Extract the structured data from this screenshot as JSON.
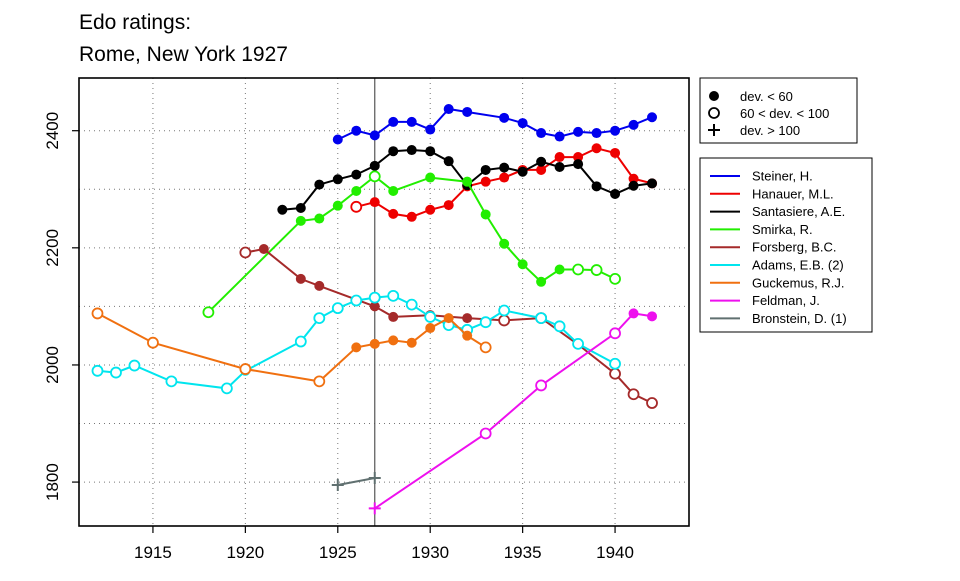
{
  "chart_data": {
    "type": "line",
    "title_line1": "Edo ratings:",
    "title_line2": "Rome, New York 1927",
    "xlim": [
      1911,
      1944
    ],
    "ylim": [
      1725,
      2490
    ],
    "x_ticks": [
      1915,
      1920,
      1925,
      1930,
      1935,
      1940
    ],
    "y_ticks": [
      1800,
      2000,
      2200,
      2400
    ],
    "grid": true,
    "vertical_marker_x": 1927,
    "marker_legend": [
      {
        "symbol": "filled",
        "label": "dev. < 60"
      },
      {
        "symbol": "open",
        "label": "60 < dev. < 100"
      },
      {
        "symbol": "plus",
        "label": "dev. > 100"
      }
    ],
    "series": [
      {
        "name": "Steiner, H.",
        "color": "#0000ee",
        "points": [
          [
            1925,
            2385,
            "f"
          ],
          [
            1926,
            2400,
            "f"
          ],
          [
            1927,
            2392,
            "f"
          ],
          [
            1928,
            2415,
            "f"
          ],
          [
            1929,
            2415,
            "f"
          ],
          [
            1930,
            2402,
            "f"
          ],
          [
            1931,
            2437,
            "f"
          ],
          [
            1932,
            2432,
            "f"
          ],
          [
            1934,
            2422,
            "f"
          ],
          [
            1935,
            2413,
            "f"
          ],
          [
            1936,
            2396,
            "f"
          ],
          [
            1937,
            2390,
            "f"
          ],
          [
            1938,
            2398,
            "f"
          ],
          [
            1939,
            2396,
            "f"
          ],
          [
            1940,
            2400,
            "f"
          ],
          [
            1941,
            2410,
            "f"
          ],
          [
            1942,
            2423,
            "f"
          ]
        ]
      },
      {
        "name": "Hanauer, M.L.",
        "color": "#ee0000",
        "points": [
          [
            1926,
            2270,
            "o"
          ],
          [
            1927,
            2278,
            "f"
          ],
          [
            1928,
            2258,
            "f"
          ],
          [
            1929,
            2253,
            "f"
          ],
          [
            1930,
            2265,
            "f"
          ],
          [
            1931,
            2273,
            "f"
          ],
          [
            1932,
            2305,
            "f"
          ],
          [
            1933,
            2313,
            "f"
          ],
          [
            1934,
            2320,
            "f"
          ],
          [
            1935,
            2333,
            "f"
          ],
          [
            1936,
            2333,
            "f"
          ],
          [
            1937,
            2355,
            "f"
          ],
          [
            1938,
            2355,
            "f"
          ],
          [
            1939,
            2370,
            "f"
          ],
          [
            1940,
            2362,
            "f"
          ],
          [
            1941,
            2318,
            "f"
          ],
          [
            1942,
            2310,
            "f"
          ]
        ]
      },
      {
        "name": "Santasiere, A.E.",
        "color": "#000000",
        "points": [
          [
            1922,
            2265,
            "f"
          ],
          [
            1923,
            2268,
            "f"
          ],
          [
            1924,
            2308,
            "f"
          ],
          [
            1925,
            2317,
            "f"
          ],
          [
            1926,
            2325,
            "f"
          ],
          [
            1927,
            2340,
            "f"
          ],
          [
            1928,
            2365,
            "f"
          ],
          [
            1929,
            2367,
            "f"
          ],
          [
            1930,
            2365,
            "f"
          ],
          [
            1931,
            2348,
            "f"
          ],
          [
            1932,
            2307,
            "f"
          ],
          [
            1933,
            2333,
            "f"
          ],
          [
            1934,
            2337,
            "f"
          ],
          [
            1935,
            2330,
            "f"
          ],
          [
            1936,
            2347,
            "f"
          ],
          [
            1937,
            2338,
            "f"
          ],
          [
            1938,
            2343,
            "f"
          ],
          [
            1939,
            2305,
            "f"
          ],
          [
            1940,
            2292,
            "f"
          ],
          [
            1941,
            2306,
            "f"
          ],
          [
            1942,
            2310,
            "f"
          ]
        ]
      },
      {
        "name": "Smirka, R.",
        "color": "#22ee00",
        "points": [
          [
            1918,
            2090,
            "o"
          ],
          [
            1923,
            2246,
            "f"
          ],
          [
            1924,
            2250,
            "f"
          ],
          [
            1925,
            2272,
            "f"
          ],
          [
            1926,
            2297,
            "f"
          ],
          [
            1927,
            2322,
            "o"
          ],
          [
            1928,
            2297,
            "f"
          ],
          [
            1930,
            2320,
            "f"
          ],
          [
            1932,
            2313,
            "f"
          ],
          [
            1933,
            2257,
            "f"
          ],
          [
            1934,
            2207,
            "f"
          ],
          [
            1935,
            2172,
            "f"
          ],
          [
            1936,
            2142,
            "f"
          ],
          [
            1937,
            2163,
            "f"
          ],
          [
            1938,
            2163,
            "o"
          ],
          [
            1939,
            2162,
            "o"
          ],
          [
            1940,
            2147,
            "o"
          ]
        ]
      },
      {
        "name": "Forsberg, B.C.",
        "color": "#a52a2a",
        "points": [
          [
            1920,
            2192,
            "o"
          ],
          [
            1921,
            2198,
            "f"
          ],
          [
            1923,
            2147,
            "f"
          ],
          [
            1924,
            2135,
            "f"
          ],
          [
            1927,
            2100,
            "f"
          ],
          [
            1928,
            2082,
            "f"
          ],
          [
            1930,
            2085,
            "f"
          ],
          [
            1932,
            2080,
            "f"
          ],
          [
            1934,
            2076,
            "o"
          ],
          [
            1936,
            2080,
            "o"
          ],
          [
            1938,
            2035,
            "f"
          ],
          [
            1940,
            1985,
            "o"
          ],
          [
            1941,
            1950,
            "o"
          ],
          [
            1942,
            1935,
            "o"
          ]
        ]
      },
      {
        "name": "Adams, E.B. (2)",
        "color": "#00e5ee",
        "points": [
          [
            1912,
            1990,
            "o"
          ],
          [
            1913,
            1987,
            "o"
          ],
          [
            1914,
            1999,
            "o"
          ],
          [
            1916,
            1972,
            "o"
          ],
          [
            1919,
            1960,
            "o"
          ],
          [
            1920,
            1990,
            "f"
          ],
          [
            1923,
            2040,
            "o"
          ],
          [
            1924,
            2080,
            "o"
          ],
          [
            1925,
            2097,
            "o"
          ],
          [
            1926,
            2110,
            "o"
          ],
          [
            1927,
            2115,
            "o"
          ],
          [
            1928,
            2118,
            "o"
          ],
          [
            1929,
            2103,
            "o"
          ],
          [
            1930,
            2082,
            "o"
          ],
          [
            1931,
            2068,
            "o"
          ],
          [
            1932,
            2060,
            "o"
          ],
          [
            1933,
            2073,
            "o"
          ],
          [
            1934,
            2093,
            "o"
          ],
          [
            1936,
            2080,
            "o"
          ],
          [
            1937,
            2066,
            "o"
          ],
          [
            1938,
            2036,
            "o"
          ],
          [
            1940,
            2002,
            "o"
          ]
        ]
      },
      {
        "name": "Guckemus, R.J.",
        "color": "#f07010",
        "points": [
          [
            1912,
            2088,
            "o"
          ],
          [
            1915,
            2038,
            "o"
          ],
          [
            1920,
            1993,
            "o"
          ],
          [
            1924,
            1972,
            "o"
          ],
          [
            1926,
            2030,
            "f"
          ],
          [
            1927,
            2036,
            "f"
          ],
          [
            1928,
            2042,
            "f"
          ],
          [
            1929,
            2038,
            "f"
          ],
          [
            1930,
            2063,
            "f"
          ],
          [
            1931,
            2080,
            "f"
          ],
          [
            1932,
            2050,
            "f"
          ],
          [
            1933,
            2030,
            "o"
          ]
        ]
      },
      {
        "name": "Feldman, J.",
        "color": "#ee10ee",
        "points": [
          [
            1927,
            1755,
            "p"
          ],
          [
            1933,
            1883,
            "o"
          ],
          [
            1936,
            1965,
            "o"
          ],
          [
            1940,
            2054,
            "o"
          ],
          [
            1941,
            2088,
            "f"
          ],
          [
            1942,
            2083,
            "f"
          ]
        ]
      },
      {
        "name": "Bronstein, D. (1)",
        "color": "#607070",
        "points": [
          [
            1925,
            1795,
            "p"
          ],
          [
            1927,
            1807,
            "p"
          ]
        ]
      }
    ]
  }
}
